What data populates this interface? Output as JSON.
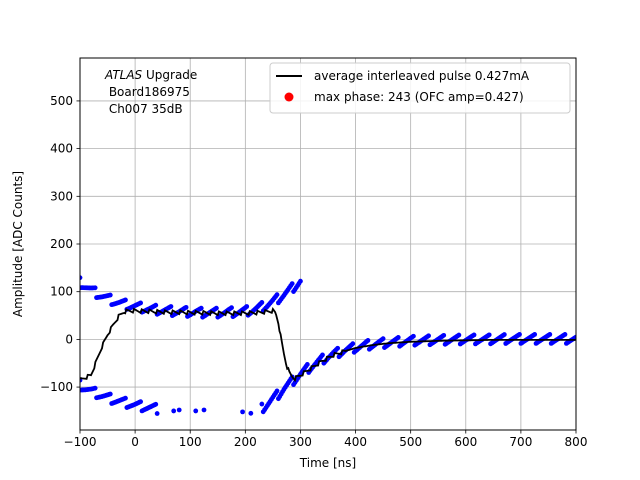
{
  "chart_data": {
    "type": "scatter",
    "xlabel": "Time [ns]",
    "ylabel": "Amplitude [ADC Counts]",
    "xlim": [
      -100,
      800
    ],
    "ylim": [
      -190,
      590
    ],
    "xticks": [
      -100,
      0,
      100,
      200,
      300,
      400,
      500,
      600,
      700,
      800
    ],
    "yticks": [
      -100,
      0,
      100,
      200,
      300,
      400,
      500
    ],
    "grid": true,
    "legend_position": "top-right",
    "annotation": {
      "italic": "ATLAS",
      "line1_rest": " Upgrade",
      "line2": " Board186975",
      "line3": " Ch007 35dB"
    },
    "series": [
      {
        "name": "average interleaved pulse 0.427mA",
        "kind": "line",
        "color": "#000000",
        "x": [
          -100,
          -90,
          -80,
          -70,
          -60,
          -50,
          -40,
          -30,
          -20,
          -10,
          0,
          20,
          40,
          60,
          80,
          100,
          120,
          140,
          160,
          180,
          200,
          220,
          240,
          250,
          255,
          260,
          265,
          270,
          275,
          280,
          285,
          290,
          300,
          320,
          340,
          360,
          380,
          400,
          430,
          460,
          500,
          550,
          600,
          650,
          700,
          750,
          800
        ],
        "y": [
          -85,
          -80,
          -75,
          -45,
          -15,
          10,
          30,
          48,
          58,
          60,
          60,
          59,
          58,
          57,
          57,
          56,
          56,
          55,
          55,
          55,
          55,
          56,
          58,
          60,
          55,
          35,
          0,
          -30,
          -55,
          -70,
          -78,
          -82,
          -75,
          -60,
          -45,
          -33,
          -25,
          -18,
          -12,
          -8,
          -5,
          -3,
          -2,
          -1,
          -1,
          -1,
          -1
        ]
      },
      {
        "name": "",
        "kind": "points",
        "color": "#0000ff",
        "segments": [
          {
            "x": [
              -100,
              -90,
              -80,
              -70,
              -60,
              -50,
              -40,
              -30,
              -20,
              -10,
              0,
              10,
              20,
              30,
              40,
              50,
              60,
              70,
              80,
              90,
              100,
              110,
              120,
              130,
              140,
              150,
              160,
              170,
              180,
              190,
              200,
              210,
              220,
              230,
              240,
              250,
              260,
              270,
              280,
              290,
              300
            ],
            "y": [
              120,
              112,
              104,
              97,
              91,
              86,
              81,
              77,
              74,
              71,
              69,
              67,
              65,
              63,
              62,
              61,
              60,
              59,
              58,
              58,
              57,
              57,
              56,
              56,
              56,
              56,
              56,
              57,
              57,
              58,
              59,
              61,
              64,
              68,
              73,
              79,
              86,
              94,
              103,
              112,
              122
            ]
          },
          {
            "x": [
              -100,
              -90,
              -80,
              -70,
              -60,
              -50,
              -40,
              -30,
              -20,
              -10,
              0,
              10,
              20,
              30,
              40
            ],
            "y": [
              -95,
              -102,
              -108,
              -113,
              -118,
              -122,
              -126,
              -129,
              -132,
              -135,
              -138,
              -140,
              -142,
              -144,
              -146
            ]
          },
          {
            "x": [
              70,
              80,
              110,
              125,
              195,
              210
            ],
            "y": [
              -150,
              -148,
              -150,
              -148,
              -152,
              -155
            ]
          },
          {
            "x": [
              230,
              240,
              250,
              260,
              270,
              280,
              290,
              300,
              310,
              320,
              330,
              340,
              350,
              360,
              380,
              400,
              420,
              440,
              460,
              480,
              500,
              530,
              560,
              600,
              640,
              680,
              720,
              760,
              800
            ],
            "y": [
              -145,
              -135,
              -125,
              -115,
              -103,
              -93,
              -83,
              -73,
              -64,
              -56,
              -49,
              -42,
              -36,
              -31,
              -23,
              -17,
              -12,
              -9,
              -7,
              -5,
              -3,
              -2,
              -1,
              0,
              0,
              1,
              1,
              1,
              1
            ]
          }
        ]
      },
      {
        "name": "max phase: 243 (OFC amp=0.427)",
        "kind": "marker",
        "color": "#ff0000",
        "x": [],
        "y": []
      }
    ]
  }
}
